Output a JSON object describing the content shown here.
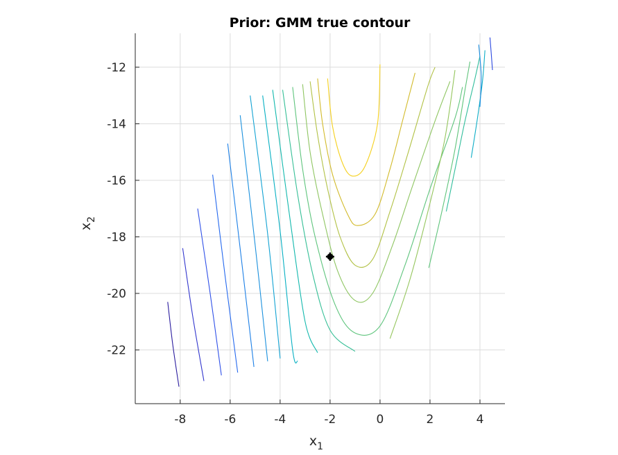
{
  "chart_data": {
    "type": "contour",
    "title": "Prior: GMM true contour",
    "xlabel": "x",
    "xlabel_sub": "1",
    "ylabel": "x",
    "ylabel_sub": "2",
    "xlim": [
      -9.8,
      5.0
    ],
    "ylim": [
      -23.9,
      -10.8
    ],
    "xticks": [
      -8,
      -6,
      -4,
      -2,
      0,
      2,
      4
    ],
    "yticks": [
      -22,
      -20,
      -18,
      -16,
      -14,
      -12
    ],
    "grid": true,
    "marker": {
      "x": -2.0,
      "y": -18.7,
      "color": "#000000"
    },
    "contours": [
      {
        "level": 1,
        "color": "#2a1c9e",
        "points": [
          [
            -8.5,
            -20.3
          ],
          [
            -8.3,
            -21.8
          ],
          [
            -8.05,
            -23.3
          ]
        ]
      },
      {
        "level": 2,
        "color": "#3135cd",
        "points": [
          [
            -7.9,
            -18.4
          ],
          [
            -7.5,
            -20.8
          ],
          [
            -7.05,
            -23.1
          ]
        ]
      },
      {
        "level": 3,
        "color": "#2f50e8",
        "points": [
          [
            -7.3,
            -17.0
          ],
          [
            -6.8,
            -20.0
          ],
          [
            -6.35,
            -22.9
          ]
        ]
      },
      {
        "level": 4,
        "color": "#2468ee",
        "points": [
          [
            -6.7,
            -15.8
          ],
          [
            -6.2,
            -19.4
          ],
          [
            -5.7,
            -22.8
          ]
        ]
      },
      {
        "level": 5,
        "color": "#1c7fe6",
        "points": [
          [
            -6.1,
            -14.7
          ],
          [
            -5.55,
            -18.8
          ],
          [
            -5.05,
            -22.6
          ]
        ]
      },
      {
        "level": 6,
        "color": "#1a90dd",
        "points": [
          [
            -5.6,
            -13.7
          ],
          [
            -5.0,
            -18.3
          ],
          [
            -4.5,
            -22.4
          ]
        ]
      },
      {
        "level": 7,
        "color": "#11a2d3",
        "points": [
          [
            -5.2,
            -13.0
          ],
          [
            -4.5,
            -17.9
          ],
          [
            -4.0,
            -22.3
          ]
        ]
      },
      {
        "level": 8,
        "color": "#05afc2",
        "points": [
          [
            -4.7,
            -13.0
          ],
          [
            -4.0,
            -17.8
          ],
          [
            -3.5,
            -22.0
          ],
          [
            -3.3,
            -22.4
          ]
        ]
      },
      {
        "level": 9,
        "color": "#12b8ad",
        "points": [
          [
            -4.3,
            -12.8
          ],
          [
            -3.6,
            -17.4
          ],
          [
            -3.0,
            -21.0
          ],
          [
            -2.5,
            -22.1
          ]
        ]
      },
      {
        "level": 10,
        "color": "#35bf96",
        "points": [
          [
            -3.9,
            -12.8
          ],
          [
            -3.3,
            -16.5
          ],
          [
            -2.7,
            -19.3
          ],
          [
            -2.0,
            -21.3
          ],
          [
            -1.0,
            -22.05
          ]
        ]
      },
      {
        "level": 11,
        "color": "#5ec47c",
        "points": [
          [
            -3.5,
            -12.7
          ],
          [
            -3.1,
            -15.6
          ],
          [
            -2.6,
            -18.0
          ],
          [
            -1.8,
            -20.4
          ],
          [
            -1.0,
            -21.4
          ],
          [
            0.0,
            -21.15
          ],
          [
            1.0,
            -19.0
          ],
          [
            2.0,
            -16.3
          ],
          [
            3.0,
            -13.8
          ],
          [
            3.3,
            -12.7
          ]
        ]
      },
      {
        "level": 12,
        "color": "#8ec561",
        "points": [
          [
            -3.1,
            -12.6
          ],
          [
            -2.8,
            -15.0
          ],
          [
            -2.3,
            -17.2
          ],
          [
            -1.7,
            -19.2
          ],
          [
            -1.0,
            -20.25
          ],
          [
            -0.3,
            -20.0
          ],
          [
            0.5,
            -18.3
          ],
          [
            1.3,
            -16.2
          ],
          [
            2.2,
            -13.9
          ],
          [
            2.8,
            -12.5
          ]
        ]
      },
      {
        "level": 13,
        "color": "#b1c144",
        "points": [
          [
            -2.8,
            -12.5
          ],
          [
            -2.5,
            -14.4
          ],
          [
            -2.1,
            -16.3
          ],
          [
            -1.6,
            -18.0
          ],
          [
            -1.0,
            -19.0
          ],
          [
            -0.3,
            -18.8
          ],
          [
            0.4,
            -17.1
          ],
          [
            1.1,
            -15.1
          ],
          [
            1.9,
            -12.7
          ],
          [
            2.2,
            -12.0
          ]
        ]
      },
      {
        "level": 14,
        "color": "#d2ba2a",
        "points": [
          [
            -2.5,
            -12.4
          ],
          [
            -2.3,
            -14.0
          ],
          [
            -1.9,
            -15.8
          ],
          [
            -1.3,
            -17.2
          ],
          [
            -0.9,
            -17.6
          ],
          [
            -0.2,
            -17.2
          ],
          [
            0.4,
            -15.6
          ],
          [
            0.9,
            -13.9
          ],
          [
            1.4,
            -12.2
          ]
        ]
      },
      {
        "level": 15,
        "color": "#f5d01d",
        "points": [
          [
            -2.1,
            -12.4
          ],
          [
            -1.9,
            -14.1
          ],
          [
            -1.5,
            -15.4
          ],
          [
            -1.1,
            -15.85
          ],
          [
            -0.6,
            -15.5
          ],
          [
            -0.1,
            -14.0
          ],
          [
            0.0,
            -11.9
          ]
        ]
      },
      {
        "level": 16,
        "color": "#94c55c",
        "points": [
          [
            0.4,
            -21.6
          ],
          [
            1.2,
            -19.5
          ],
          [
            2.0,
            -16.8
          ],
          [
            2.6,
            -14.5
          ],
          [
            3.0,
            -12.1
          ]
        ]
      },
      {
        "level": 17,
        "color": "#5fc47b",
        "points": [
          [
            1.95,
            -19.1
          ],
          [
            2.5,
            -17.0
          ],
          [
            3.0,
            -14.9
          ],
          [
            3.4,
            -12.8
          ],
          [
            3.6,
            -11.8
          ]
        ]
      },
      {
        "level": 18,
        "color": "#30bd9b",
        "points": [
          [
            2.65,
            -17.1
          ],
          [
            3.05,
            -15.4
          ],
          [
            3.4,
            -13.9
          ],
          [
            3.8,
            -12.4
          ],
          [
            4.0,
            -11.6
          ]
        ]
      },
      {
        "level": 19,
        "color": "#0eadc6",
        "points": [
          [
            3.65,
            -15.2
          ],
          [
            3.9,
            -13.8
          ],
          [
            4.1,
            -12.5
          ],
          [
            4.2,
            -11.4
          ]
        ]
      },
      {
        "level": 20,
        "color": "#1a8ddf",
        "points": [
          [
            4.0,
            -13.4
          ],
          [
            4.05,
            -12.3
          ],
          [
            3.95,
            -11.2
          ]
        ]
      },
      {
        "level": 21,
        "color": "#2c49e0",
        "points": [
          [
            4.5,
            -12.1
          ],
          [
            4.45,
            -11.5
          ],
          [
            4.4,
            -10.95
          ]
        ]
      }
    ]
  }
}
